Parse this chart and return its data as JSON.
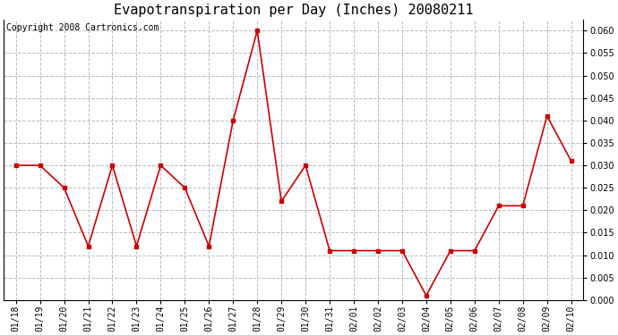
{
  "title": "Evapotranspiration per Day (Inches) 20080211",
  "copyright_text": "Copyright 2008 Cartronics.com",
  "x_labels": [
    "01/18",
    "01/19",
    "01/20",
    "01/21",
    "01/22",
    "01/23",
    "01/24",
    "01/25",
    "01/26",
    "01/27",
    "01/28",
    "01/29",
    "01/30",
    "01/31",
    "02/01",
    "02/02",
    "02/03",
    "02/04",
    "02/05",
    "02/06",
    "02/07",
    "02/08",
    "02/09",
    "02/10"
  ],
  "y_values": [
    0.03,
    0.03,
    0.025,
    0.012,
    0.03,
    0.012,
    0.03,
    0.025,
    0.012,
    0.04,
    0.06,
    0.022,
    0.03,
    0.011,
    0.011,
    0.011,
    0.011,
    0.001,
    0.011,
    0.011,
    0.021,
    0.021,
    0.041,
    0.031
  ],
  "line_color": "#cc0000",
  "marker": "s",
  "marker_size": 3,
  "background_color": "#ffffff",
  "grid_color": "#bbbbbb",
  "ylim": [
    0.0,
    0.0625
  ],
  "yticks": [
    0.0,
    0.005,
    0.01,
    0.015,
    0.02,
    0.025,
    0.03,
    0.035,
    0.04,
    0.045,
    0.05,
    0.055,
    0.06
  ],
  "title_fontsize": 11,
  "copyright_fontsize": 7,
  "tick_fontsize": 7
}
